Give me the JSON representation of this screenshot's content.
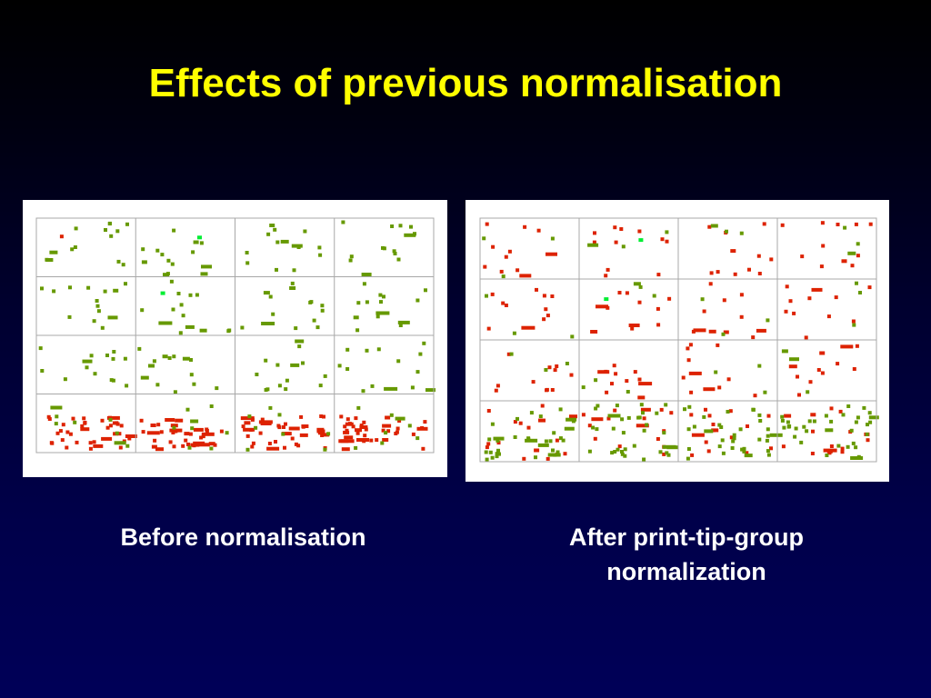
{
  "title": "Effects of previous normalisation",
  "panels": [
    {
      "id": "before",
      "caption_lines": [
        "Before normalisation"
      ]
    },
    {
      "id": "after",
      "caption_lines": [
        "After print-tip-group",
        "normalization"
      ]
    }
  ],
  "colors": {
    "background": "#00003a",
    "title": "#ffff00",
    "caption": "#ffffff",
    "grid_line": "#a8a8a8",
    "spot_red": "#dd2200",
    "spot_green": "#669900",
    "spot_bright_green": "#00ee33"
  },
  "spot_grid_layout": {
    "print_tip_rows": 4,
    "print_tip_columns": 4
  }
}
